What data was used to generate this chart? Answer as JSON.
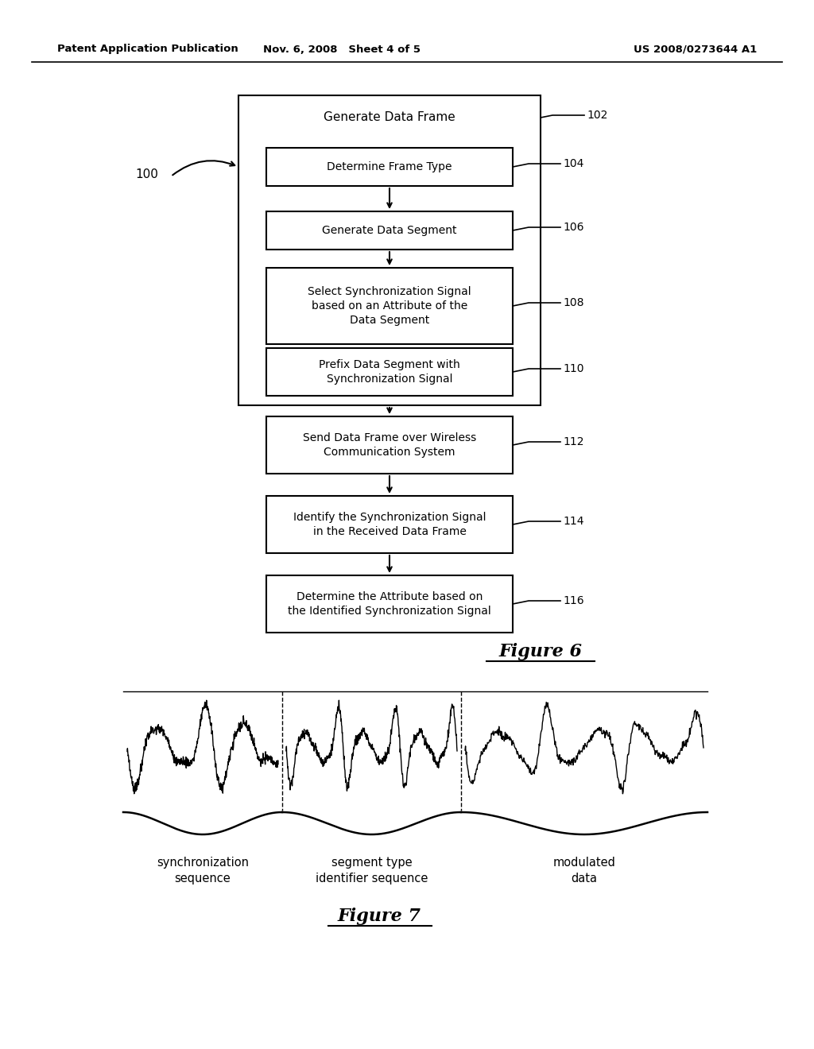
{
  "header_left": "Patent Application Publication",
  "header_mid": "Nov. 6, 2008   Sheet 4 of 5",
  "header_right": "US 2008/0273644 A1",
  "fig6_label": "Figure 6",
  "fig7_label": "Figure 7",
  "seg_labels": [
    "synchronization\nsequence",
    "segment type\nidentifier sequence",
    "modulated\ndata"
  ],
  "background_color": "#ffffff"
}
